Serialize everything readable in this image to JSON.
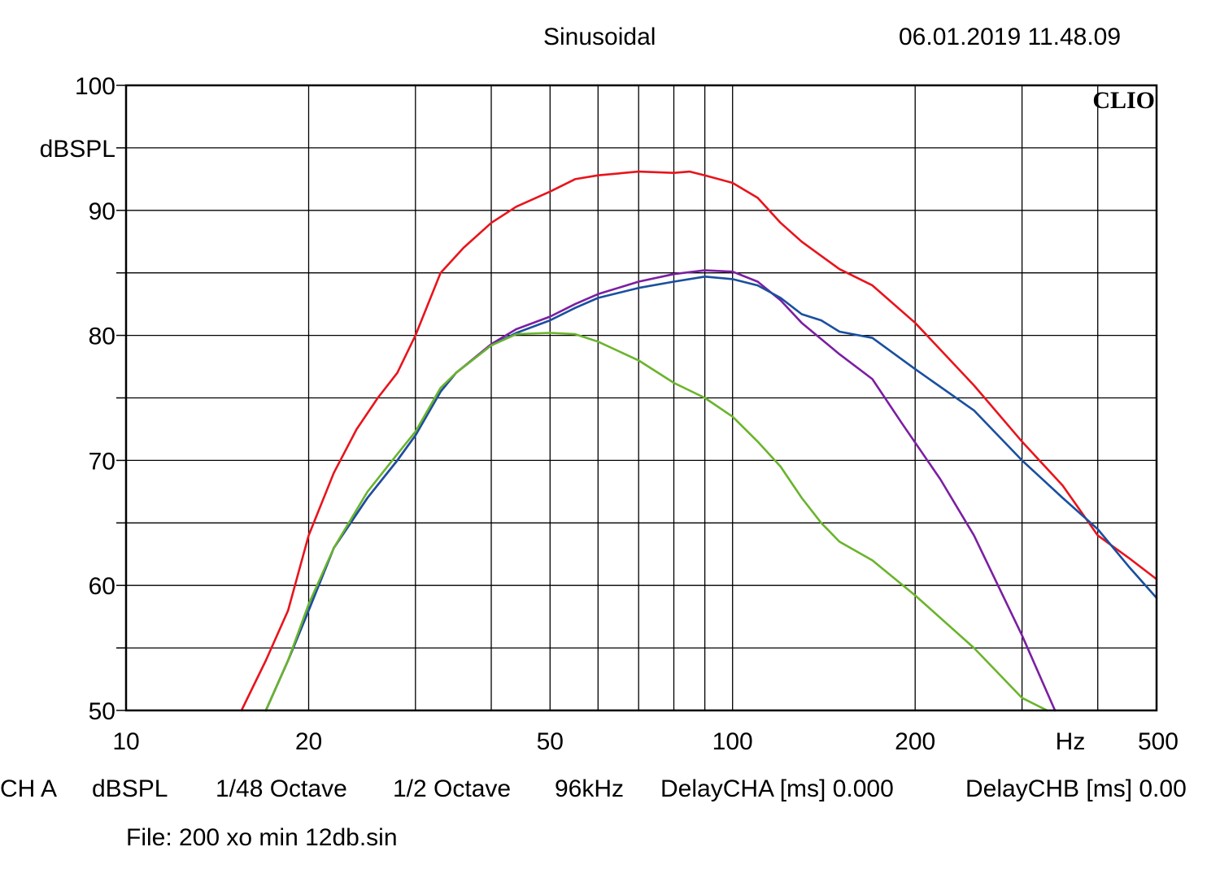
{
  "header": {
    "title": "Sinusoidal",
    "timestamp": "06.01.2019 11.48.09"
  },
  "brand": "CLIO",
  "footer": {
    "ch": "CH A",
    "unit": "dBSPL",
    "smoothing": "1/48 Octave",
    "resolution": "1/2 Octave",
    "sample_rate": "96kHz",
    "delay_a": "DelayCHA [ms] 0.000",
    "delay_b": "DelayCHB [ms] 0.00",
    "file": "File: 200 xo min 12db.sin"
  },
  "chart_data": {
    "type": "line",
    "title": "Sinusoidal",
    "xlabel": "Hz",
    "ylabel": "dBSPL",
    "xscale": "log",
    "xlim": [
      10,
      500
    ],
    "ylim": [
      50,
      100
    ],
    "x_ticks": [
      {
        "value": 10,
        "label": "10"
      },
      {
        "value": 20,
        "label": "20"
      },
      {
        "value": 50,
        "label": "50"
      },
      {
        "value": 100,
        "label": "100"
      },
      {
        "value": 200,
        "label": "200"
      },
      {
        "value": 500,
        "label": "500"
      }
    ],
    "x_grid": [
      20,
      30,
      40,
      50,
      60,
      70,
      80,
      90,
      100,
      200,
      300,
      400
    ],
    "y_ticks": [
      {
        "value": 50,
        "label": "50"
      },
      {
        "value": 60,
        "label": "60"
      },
      {
        "value": 70,
        "label": "70"
      },
      {
        "value": 80,
        "label": "80"
      },
      {
        "value": 90,
        "label": "90"
      },
      {
        "value": 100,
        "label": "100"
      }
    ],
    "y_grid": [
      55,
      60,
      65,
      70,
      75,
      80,
      85,
      90,
      95
    ],
    "grid": true,
    "series": [
      {
        "color": "#e8141c",
        "points": [
          [
            15.5,
            50
          ],
          [
            17,
            54
          ],
          [
            18.5,
            58
          ],
          [
            20,
            64
          ],
          [
            22,
            69
          ],
          [
            24,
            72.5
          ],
          [
            26,
            75
          ],
          [
            28,
            77
          ],
          [
            30,
            80
          ],
          [
            33,
            85
          ],
          [
            36,
            87
          ],
          [
            40,
            89
          ],
          [
            44,
            90.3
          ],
          [
            50,
            91.5
          ],
          [
            55,
            92.5
          ],
          [
            60,
            92.8
          ],
          [
            70,
            93.1
          ],
          [
            80,
            93.0
          ],
          [
            85,
            93.1
          ],
          [
            90,
            92.8
          ],
          [
            100,
            92.2
          ],
          [
            110,
            91
          ],
          [
            120,
            89
          ],
          [
            130,
            87.5
          ],
          [
            150,
            85.3
          ],
          [
            170,
            84
          ],
          [
            200,
            81
          ],
          [
            250,
            76
          ],
          [
            300,
            71.5
          ],
          [
            350,
            68
          ],
          [
            400,
            64
          ],
          [
            450,
            62.2
          ],
          [
            500,
            60.5
          ]
        ]
      },
      {
        "color": "#7b1fa2",
        "points": [
          [
            17,
            50
          ],
          [
            18.5,
            54
          ],
          [
            20,
            58
          ],
          [
            22,
            63
          ],
          [
            25,
            67
          ],
          [
            28,
            70
          ],
          [
            30,
            72
          ],
          [
            33,
            75.5
          ],
          [
            35,
            77
          ],
          [
            40,
            79.3
          ],
          [
            44,
            80.5
          ],
          [
            50,
            81.5
          ],
          [
            55,
            82.5
          ],
          [
            60,
            83.3
          ],
          [
            70,
            84.3
          ],
          [
            80,
            84.9
          ],
          [
            90,
            85.2
          ],
          [
            100,
            85.1
          ],
          [
            110,
            84.3
          ],
          [
            120,
            82.8
          ],
          [
            130,
            81
          ],
          [
            150,
            78.5
          ],
          [
            170,
            76.5
          ],
          [
            190,
            73
          ],
          [
            220,
            68.5
          ],
          [
            250,
            64
          ],
          [
            300,
            56
          ],
          [
            340,
            50
          ]
        ]
      },
      {
        "color": "#1a4fa0",
        "points": [
          [
            17,
            50
          ],
          [
            18.5,
            54
          ],
          [
            20,
            58
          ],
          [
            22,
            63
          ],
          [
            25,
            67
          ],
          [
            28,
            70
          ],
          [
            30,
            72
          ],
          [
            33,
            75.5
          ],
          [
            35,
            77
          ],
          [
            40,
            79.2
          ],
          [
            44,
            80.2
          ],
          [
            50,
            81.2
          ],
          [
            55,
            82.2
          ],
          [
            60,
            83
          ],
          [
            70,
            83.8
          ],
          [
            80,
            84.3
          ],
          [
            90,
            84.7
          ],
          [
            100,
            84.5
          ],
          [
            110,
            84
          ],
          [
            120,
            83
          ],
          [
            130,
            81.7
          ],
          [
            140,
            81.2
          ],
          [
            150,
            80.3
          ],
          [
            170,
            79.8
          ],
          [
            200,
            77.3
          ],
          [
            250,
            74
          ],
          [
            300,
            70
          ],
          [
            350,
            67
          ],
          [
            400,
            64.5
          ],
          [
            450,
            61.5
          ],
          [
            500,
            59
          ]
        ]
      },
      {
        "color": "#6ab42c",
        "points": [
          [
            17,
            50
          ],
          [
            18.5,
            54
          ],
          [
            20,
            58.5
          ],
          [
            22,
            63
          ],
          [
            25,
            67.5
          ],
          [
            28,
            70.5
          ],
          [
            30,
            72.3
          ],
          [
            33,
            75.8
          ],
          [
            35,
            77
          ],
          [
            40,
            79.2
          ],
          [
            44,
            80.1
          ],
          [
            50,
            80.2
          ],
          [
            55,
            80.1
          ],
          [
            60,
            79.5
          ],
          [
            70,
            78
          ],
          [
            80,
            76.2
          ],
          [
            90,
            75
          ],
          [
            100,
            73.5
          ],
          [
            110,
            71.5
          ],
          [
            120,
            69.5
          ],
          [
            130,
            67
          ],
          [
            140,
            65
          ],
          [
            150,
            63.5
          ],
          [
            170,
            62
          ],
          [
            200,
            59.2
          ],
          [
            250,
            55
          ],
          [
            300,
            51
          ],
          [
            330,
            50
          ]
        ]
      }
    ]
  }
}
